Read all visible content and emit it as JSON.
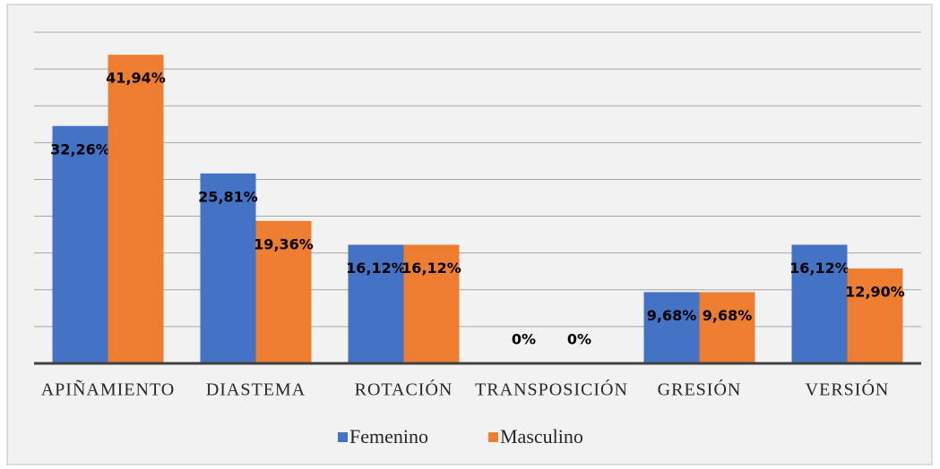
{
  "chart_data": {
    "type": "bar",
    "categories": [
      "APIÑAMIENTO",
      "DIASTEMA",
      "ROTACIÓN",
      "TRANSPOSICIÓN",
      "GRESIÓN",
      "VERSIÓN"
    ],
    "series": [
      {
        "name": "Femenino",
        "color": "#4472c4",
        "values": [
          32.26,
          25.81,
          16.12,
          0,
          9.68,
          16.12
        ],
        "value_labels": [
          "32,26%",
          "25,81%",
          "16,12%",
          "0%",
          "9,68%",
          "16,12%"
        ]
      },
      {
        "name": "Masculino",
        "color": "#ed7d31",
        "values": [
          41.94,
          19.36,
          16.12,
          0,
          9.68,
          12.9
        ],
        "value_labels": [
          "41,94%",
          "19,36%",
          "16,12%",
          "0%",
          "9,68%",
          "12,90%"
        ]
      }
    ],
    "ylim": [
      0,
      45
    ],
    "yticks": [
      0,
      5,
      10,
      15,
      20,
      25,
      30,
      35,
      40,
      45
    ],
    "grid": true,
    "legend": "bottom"
  }
}
